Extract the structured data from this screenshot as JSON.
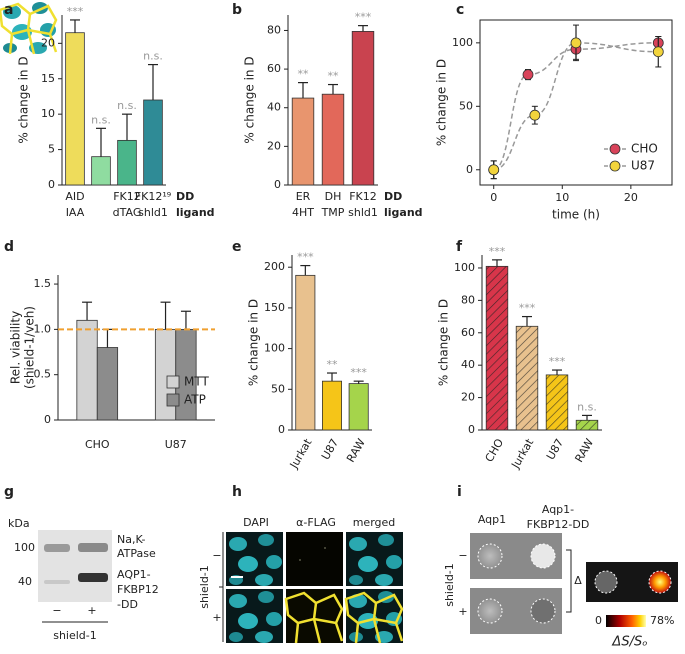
{
  "chart_data": [
    {
      "panel": "a",
      "type": "bar",
      "ylabel": "% change in D",
      "categories": [
        "AID",
        null,
        "FK12",
        "FK12¹⁹"
      ],
      "ligands": [
        "IAA",
        null,
        "dTAG",
        "shld1"
      ],
      "row_labels": [
        "DD",
        "ligand"
      ],
      "values": [
        21.5,
        4,
        6.3,
        12
      ],
      "errors": [
        1.8,
        4,
        3.7,
        5
      ],
      "colors": [
        "#eedc5b",
        "#8fdca0",
        "#4ab58a",
        "#2f8b96"
      ],
      "annotations": [
        "***",
        "n.s.",
        "n.s.",
        "n.s."
      ],
      "ylim": [
        0,
        24
      ],
      "yticks": [
        0,
        5,
        10,
        15,
        20
      ]
    },
    {
      "panel": "b",
      "type": "bar",
      "ylabel": "% change in D",
      "categories": [
        "ER",
        "DH",
        "FK12"
      ],
      "ligands": [
        "4HT",
        "TMP",
        "shld1"
      ],
      "row_labels": [
        "DD",
        "ligand"
      ],
      "values": [
        45,
        47,
        79.5
      ],
      "errors": [
        8,
        5,
        3
      ],
      "colors": [
        "#e8956e",
        "#e2685a",
        "#c9434f"
      ],
      "annotations": [
        "**",
        "**",
        "***"
      ],
      "ylim": [
        0,
        88
      ],
      "yticks": [
        0,
        20,
        40,
        60,
        80
      ]
    },
    {
      "panel": "c",
      "type": "line",
      "ylabel": "% change in D",
      "xlabel": "time (h)",
      "series": [
        {
          "name": "CHO",
          "color": "#d9435a",
          "x": [
            0,
            5,
            12,
            24
          ],
          "values": [
            0,
            75,
            95,
            100
          ],
          "errors": [
            7,
            4,
            8,
            5
          ]
        },
        {
          "name": "U87",
          "color": "#f2d43c",
          "x": [
            0,
            6,
            12,
            24
          ],
          "values": [
            0,
            43,
            100,
            93
          ],
          "errors": [
            7,
            7,
            14,
            12
          ]
        }
      ],
      "line_color": "#999999",
      "line_style": "dashed",
      "legend": "lower right",
      "xlim": [
        -2,
        26
      ],
      "xticks": [
        0,
        10,
        20
      ],
      "ylim": [
        -12,
        118
      ],
      "yticks": [
        0,
        50,
        100
      ]
    },
    {
      "panel": "d",
      "type": "bar",
      "ylabel": [
        "Rel. viability",
        "(shield-1/veh)"
      ],
      "categories": [
        "CHO",
        "U87"
      ],
      "series": [
        {
          "name": "MTT",
          "color": "#d3d3d3",
          "values": [
            1.1,
            1.0
          ],
          "errors": [
            0.2,
            0.3
          ]
        },
        {
          "name": "ATP",
          "color": "#8c8c8c",
          "values": [
            0.8,
            1.0
          ],
          "errors": [
            0.2,
            0.2
          ]
        }
      ],
      "refline": {
        "value": 1,
        "color": "#f0a030"
      },
      "legend": "lower right",
      "ylim": [
        0,
        1.6
      ],
      "yticks": [
        0,
        0.5,
        {
          "value": 1,
          "label": "1.0"
        },
        1.5
      ]
    },
    {
      "panel": "e",
      "type": "bar",
      "ylabel": "% change in D",
      "categories": [
        "Jurkat",
        "U87",
        "RAW"
      ],
      "values": [
        190,
        60,
        57
      ],
      "errors": [
        12,
        10,
        3
      ],
      "colors": [
        "#e8c18e",
        "#f5c518",
        "#a5d44b"
      ],
      "annotations": [
        "***",
        "**",
        "***"
      ],
      "ylim": [
        0,
        215
      ],
      "yticks": [
        0,
        50,
        100,
        150,
        200
      ]
    },
    {
      "panel": "f",
      "type": "bar",
      "ylabel": "% change in D",
      "hatch": true,
      "categories": [
        "CHO",
        "Jurkat",
        "U87",
        "RAW"
      ],
      "values": [
        101,
        64,
        34,
        6
      ],
      "errors": [
        4,
        6,
        3,
        3
      ],
      "colors": [
        "#d8354a",
        "#e8c18e",
        "#f5c518",
        "#a5d44b"
      ],
      "annotations": [
        "***",
        "***",
        "***",
        "n.s."
      ],
      "ylim": [
        0,
        108
      ],
      "yticks": [
        0,
        20,
        40,
        60,
        80,
        100
      ]
    }
  ],
  "panels": {
    "g": {
      "label": "g",
      "kda": "kDa",
      "markers": [
        "100",
        "40"
      ],
      "bands": [
        "Na,K-",
        "ATPase",
        "AQP1-",
        "FKBP12",
        "-DD"
      ],
      "lanes": [
        "−",
        "+"
      ],
      "condition": "shield-1"
    },
    "h": {
      "label": "h",
      "columns": [
        "DAPI",
        "α-FLAG",
        "merged"
      ],
      "rows": [
        "−",
        "+"
      ],
      "condition": "shield-1"
    },
    "i": {
      "label": "i",
      "columns": [
        "Aqp1",
        "Aqp1-",
        "FKBP12-DD"
      ],
      "rows": [
        "−",
        "+"
      ],
      "condition": "shield-1",
      "delta": "Δ",
      "scale": [
        "0",
        "78%"
      ],
      "scale_label": "ΔS/Sₒ"
    }
  }
}
